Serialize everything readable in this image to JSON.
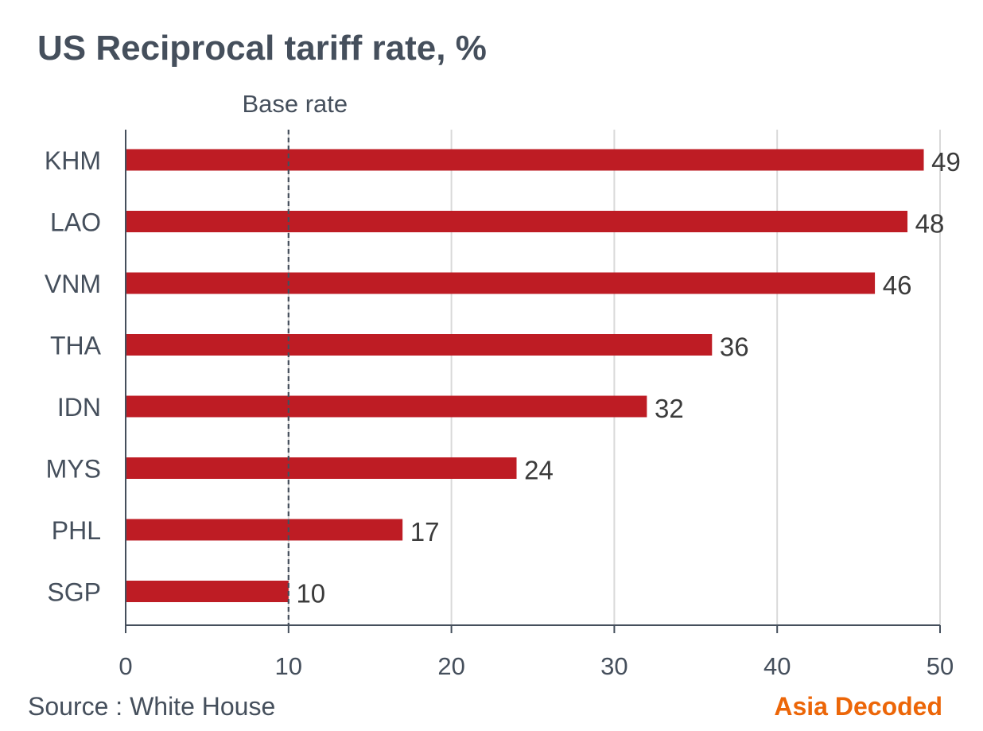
{
  "chart_data": {
    "type": "bar",
    "orientation": "horizontal",
    "title": "US Reciprocal tariff rate, %",
    "categories": [
      "KHM",
      "LAO",
      "VNM",
      "THA",
      "IDN",
      "MYS",
      "PHL",
      "SGP"
    ],
    "values": [
      49,
      48,
      46,
      36,
      32,
      24,
      17,
      10
    ],
    "value_labels": [
      "49",
      "48",
      "46",
      "36",
      "32",
      "24",
      "17",
      "10"
    ],
    "xlim": [
      0,
      50
    ],
    "x_ticks": [
      0,
      10,
      20,
      30,
      40,
      50
    ],
    "x_tick_labels": [
      "0",
      "10",
      "20",
      "30",
      "40",
      "50"
    ],
    "grid": "vertical",
    "reference_line": {
      "value": 10,
      "label": "Base rate",
      "style": "dashed"
    },
    "colors": {
      "bar": "#be1c24",
      "axis": "#454f5c",
      "grid": "#d9d9d9",
      "text": "#454f5c",
      "brand": "#ec6608"
    }
  },
  "footer": {
    "source": "Source : White House",
    "brand": "Asia Decoded"
  }
}
